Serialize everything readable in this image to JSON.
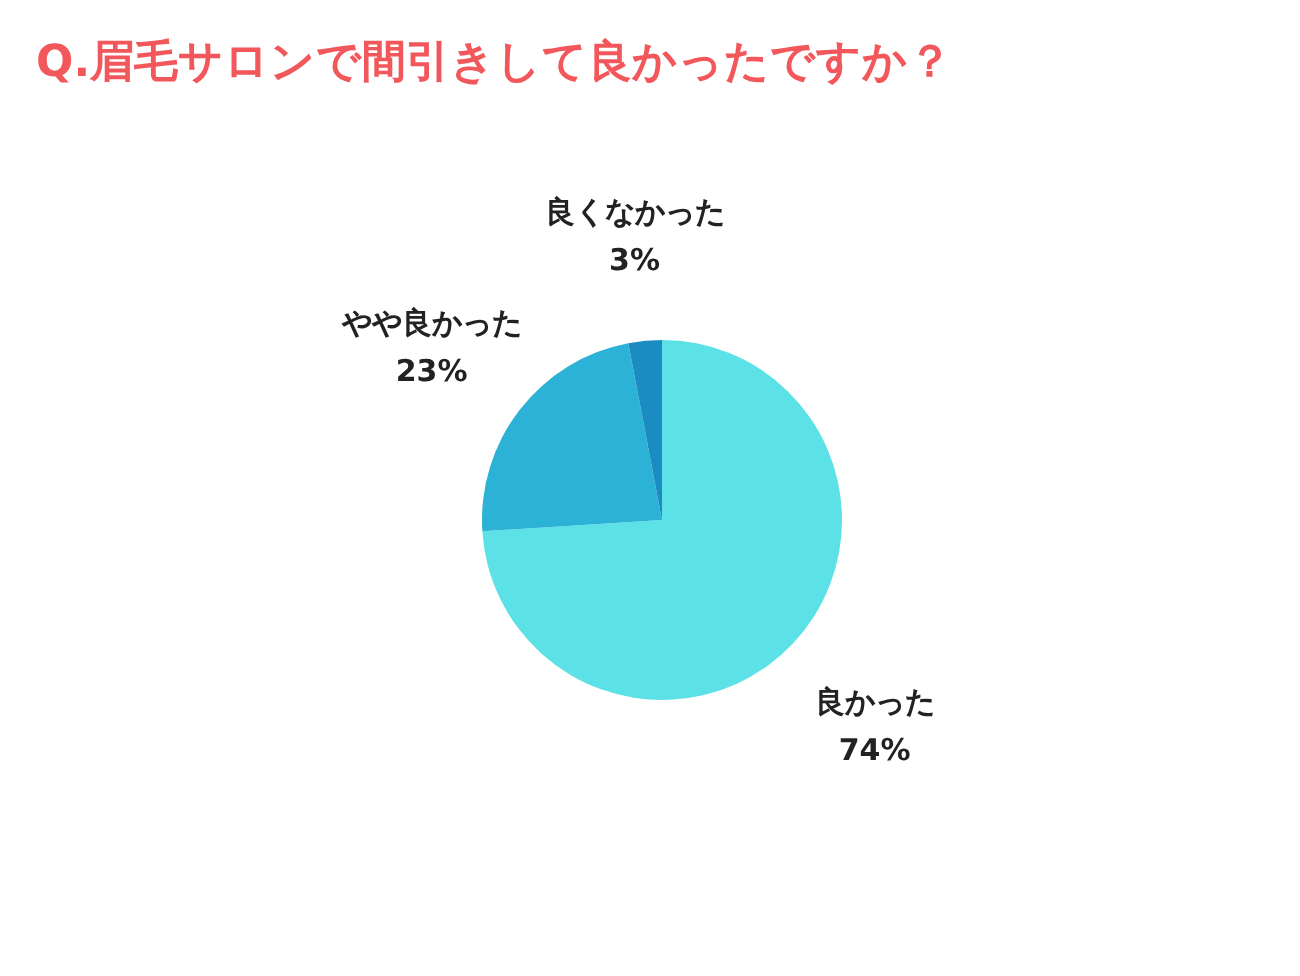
{
  "chart_data": {
    "type": "pie",
    "title": "Q.眉毛サロンで間引きして良かったですか？",
    "categories": [
      "良かった",
      "やや良かった",
      "良くなかった"
    ],
    "values": [
      74,
      23,
      3
    ],
    "value_labels": [
      "74%",
      "23%",
      "3%"
    ],
    "colors": [
      "#5ce1e6",
      "#2cb2d6",
      "#1b8cc2"
    ]
  }
}
